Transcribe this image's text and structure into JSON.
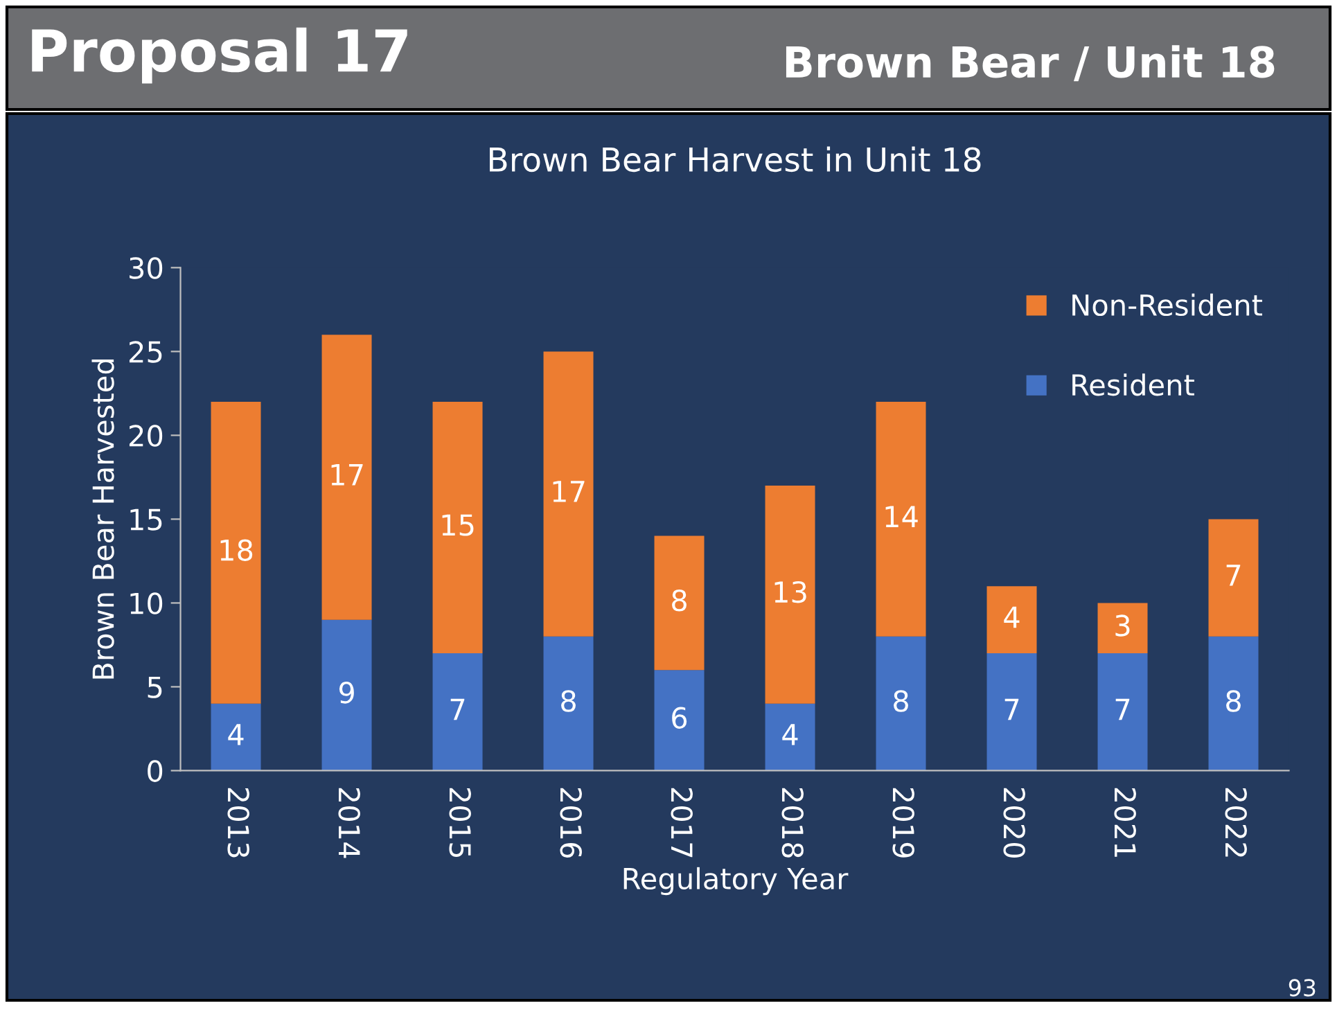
{
  "chart_data": {
    "type": "bar",
    "stacked": true,
    "title": "Brown Bear Harvest in Unit 18",
    "xlabel": "Regulatory Year",
    "ylabel": "Brown Bear Harvested",
    "annotations": [
      "Proposal 17",
      "Brown Bear / Unit 18",
      "93"
    ],
    "categories": [
      "2013",
      "2014",
      "2015",
      "2016",
      "2017",
      "2018",
      "2019",
      "2020",
      "2021",
      "2022"
    ],
    "series": [
      {
        "name": "Resident",
        "color": "#4472c4",
        "values": [
          4,
          9,
          7,
          8,
          6,
          4,
          8,
          7,
          7,
          8
        ]
      },
      {
        "name": "Non-Resident",
        "color": "#ed7d31",
        "values": [
          18,
          17,
          15,
          17,
          8,
          13,
          14,
          4,
          3,
          7
        ]
      }
    ],
    "ylim": [
      0,
      30
    ],
    "yticks": [
      0,
      5,
      10,
      15,
      20,
      25,
      30
    ],
    "grid": false,
    "legend": "top right",
    "data_labels": true
  }
}
